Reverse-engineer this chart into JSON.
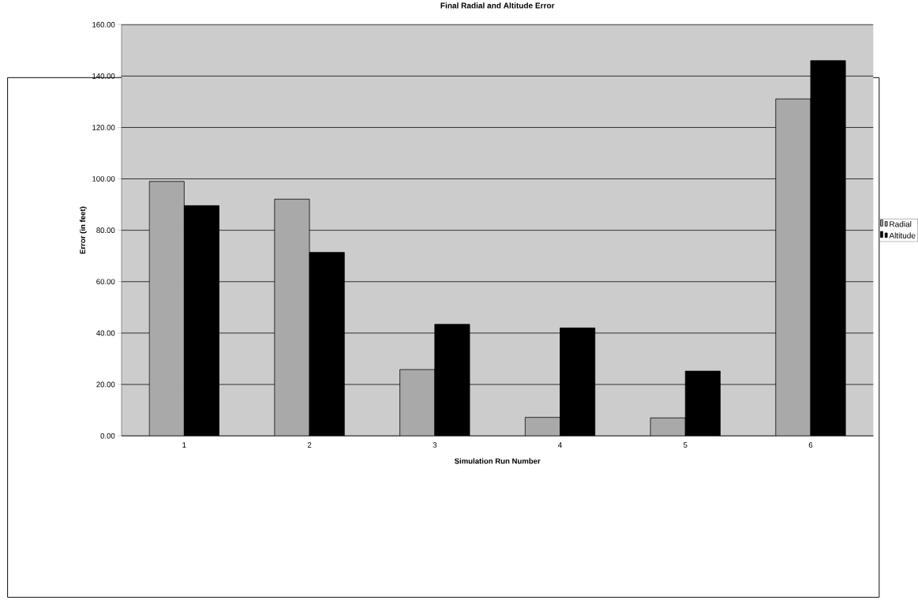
{
  "chart_data": {
    "type": "bar",
    "title": "Final Radial and Altitude Error",
    "xlabel": "Simulation Run Number",
    "ylabel": "Error (in feet)",
    "categories": [
      "1",
      "2",
      "3",
      "4",
      "5",
      "6"
    ],
    "series": [
      {
        "name": "Radial",
        "color": "#a9a9a9",
        "values": [
          99.0,
          92.1,
          25.8,
          7.2,
          7.0,
          131.1
        ]
      },
      {
        "name": "Altitude",
        "color": "#000000",
        "values": [
          89.6,
          71.4,
          43.4,
          42.0,
          25.2,
          146.0
        ]
      }
    ],
    "ylim": [
      0,
      160
    ],
    "yticks": [
      {
        "value": 0,
        "label": "0.00"
      },
      {
        "value": 20,
        "label": "20.00"
      },
      {
        "value": 40,
        "label": "40.00"
      },
      {
        "value": 60,
        "label": "60.00"
      },
      {
        "value": 80,
        "label": "80.00"
      },
      {
        "value": 100,
        "label": "100.00"
      },
      {
        "value": 120,
        "label": "120.00"
      },
      {
        "value": 140,
        "label": "140.00"
      },
      {
        "value": 160,
        "label": "160.00"
      }
    ],
    "grid": "y",
    "legend": "right"
  }
}
